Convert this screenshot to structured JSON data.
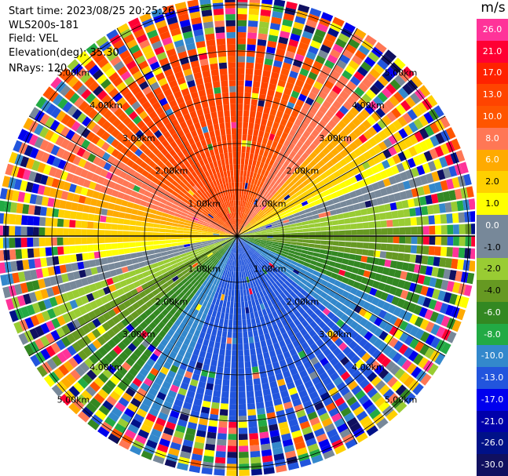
{
  "info": {
    "start_time": "Start time: 2023/08/25 20:25:26",
    "instrument": "WLS200s-181",
    "field": "Field: VEL",
    "elevation": "Elevation(deg): 35.30",
    "nrays": "NRays: 120"
  },
  "range_rings": [
    "1.00km",
    "2.00km",
    "3.00km",
    "4.00km",
    "5.00km"
  ],
  "colorbar": {
    "unit": "m/s",
    "labels": [
      "26.0",
      "21.0",
      "17.0",
      "13.0",
      "10.0",
      "8.0",
      "6.0",
      "2.0",
      "1.0",
      "0.0",
      "-1.0",
      "-2.0",
      "-4.0",
      "-6.0",
      "-8.0",
      "-10.0",
      "-13.0",
      "-17.0",
      "-21.0",
      "-26.0",
      "-30.0"
    ],
    "colors": [
      "#ff3399",
      "#ff0033",
      "#ff2200",
      "#ff4400",
      "#ff5500",
      "#ff7755",
      "#ffaa00",
      "#ffd000",
      "#ffff00",
      "#778899",
      "#778899",
      "#99cc33",
      "#669922",
      "#338822",
      "#22aa44",
      "#3388cc",
      "#2255dd",
      "#0000ee",
      "#0000aa",
      "#001188",
      "#101060"
    ]
  }
}
